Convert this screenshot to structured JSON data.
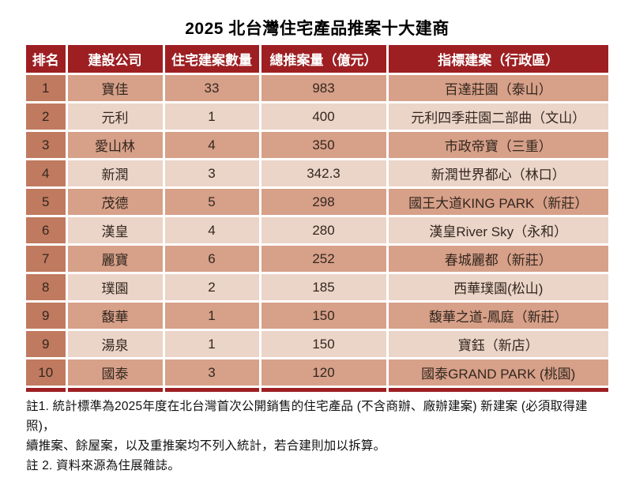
{
  "title": "2025 北台灣住宅產品推案十大建商",
  "chart_data": {
    "type": "table",
    "title": "2025 北台灣住宅產品推案十大建商",
    "columns": [
      "排名",
      "建設公司",
      "住宅建案數量",
      "總推案量（億元）",
      "指標建案（行政區）"
    ],
    "rows": [
      [
        "1",
        "寶佳",
        "33",
        "983",
        "百達莊園（泰山）"
      ],
      [
        "2",
        "元利",
        "1",
        "400",
        "元利四季莊園二部曲（文山）"
      ],
      [
        "3",
        "愛山林",
        "4",
        "350",
        "市政帝寶（三重）"
      ],
      [
        "4",
        "新潤",
        "3",
        "342.3",
        "新潤世界都心（林口）"
      ],
      [
        "5",
        "茂德",
        "5",
        "298",
        "國王大道KING PARK（新莊）"
      ],
      [
        "6",
        "漢皇",
        "4",
        "280",
        "漢皇River Sky（永和）"
      ],
      [
        "7",
        "麗寶",
        "6",
        "252",
        "春城麗都（新莊）"
      ],
      [
        "8",
        "璞園",
        "2",
        "185",
        "西華璞園(松山)"
      ],
      [
        "9",
        "馥華",
        "1",
        "150",
        "馥華之道-鳳庭（新莊）"
      ],
      [
        "9",
        "湯泉",
        "1",
        "150",
        "寶鈺（新店）"
      ],
      [
        "10",
        "國泰",
        "3",
        "120",
        "國泰GRAND PARK (桃園)"
      ]
    ]
  },
  "notes": [
    "註1. 統計標準為2025年度在北台灣首次公開銷售的住宅產品 (不含商辦、廠辦建案) 新建案 (必須取得建照)，",
    "續推案、餘屋案，以及重推案均不列入統計，若合建則加以拆算。",
    "註 2. 資料來源為住展雜誌。"
  ],
  "colors": {
    "header_bg": "#9D1F22",
    "header_text": "#FFFFFF",
    "rank_bg": "#C07A5F",
    "row_odd_bg": "#D7A089",
    "row_even_bg": "#EBD4C8",
    "cell_text": "#33271F",
    "border": "#FFFFFF"
  }
}
